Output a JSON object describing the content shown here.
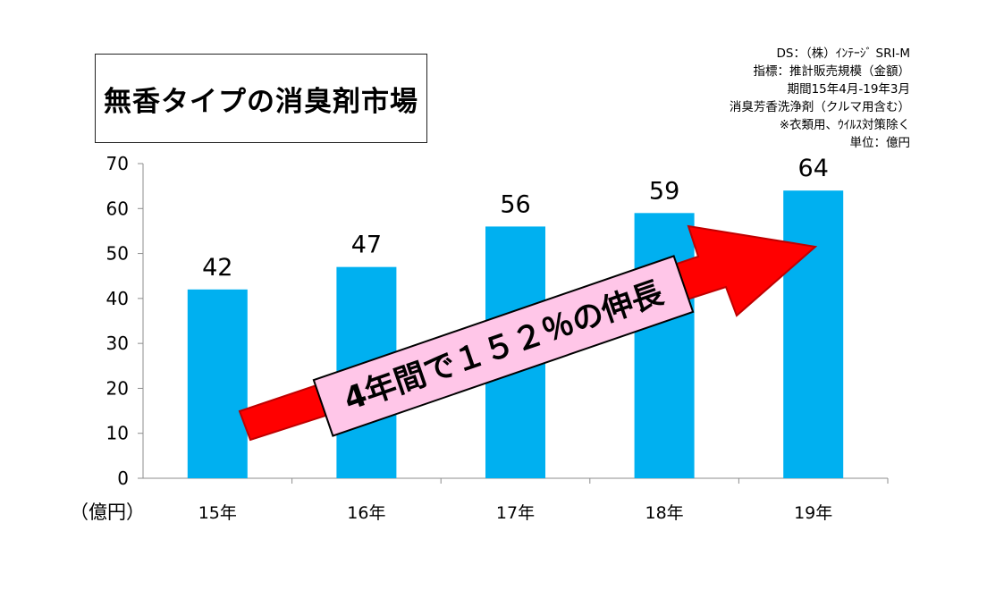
{
  "chart_data": {
    "type": "bar",
    "title": "無香タイプの消臭剤市場",
    "categories": [
      "15年",
      "16年",
      "17年",
      "18年",
      "19年"
    ],
    "values": [
      42,
      47,
      56,
      59,
      64
    ],
    "data_labels": [
      "42",
      "47",
      "56",
      "59",
      "64"
    ],
    "ylim": [
      0,
      70
    ],
    "yticks": [
      "0",
      "10",
      "20",
      "30",
      "40",
      "50",
      "60",
      "70"
    ],
    "ylabel": "（億円）",
    "bar_color": "#00b0f0",
    "grid": false,
    "annotation": {
      "text": "4年間で１５２％の伸長",
      "arrow_color": "#ff0000",
      "label_bg": "#ffc6e8"
    },
    "source_notes": [
      "DS：（株）ｲﾝﾃｰｼﾞ SRI-M",
      "指標：推計販売規模（金額）",
      "期間15年4月-19年3月",
      "消臭芳香洗浄剤（クルマ用含む）",
      "※衣類用、ｳｲﾙｽ対策除く",
      "単位：億円"
    ]
  }
}
